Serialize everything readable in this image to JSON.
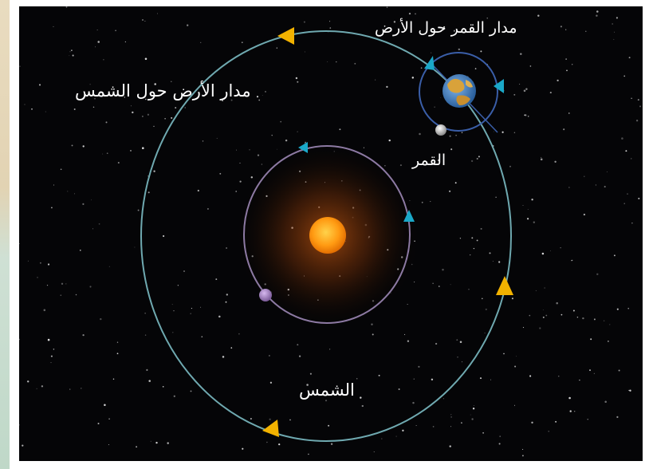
{
  "labels": {
    "moon_orbit": "مدار القمر حول الأرض",
    "earth_orbit": "مدار الأرض حول الشمس",
    "moon": "القمر",
    "sun": "الشمس"
  },
  "colors": {
    "background": "#050507",
    "earth_orbit": "#6fa9b0",
    "inner_orbit": "#8d7aa3",
    "moon_orbit": "#3a5ea8",
    "arrow_yellow": "#f2b200",
    "arrow_cyan": "#1aa8c8",
    "sun": "#ff9a12",
    "planet": "#9a7ab8"
  },
  "icons": [
    "sun-icon",
    "earth-icon",
    "moon-icon",
    "planet-icon",
    "star-field",
    "orbit-arrow"
  ]
}
